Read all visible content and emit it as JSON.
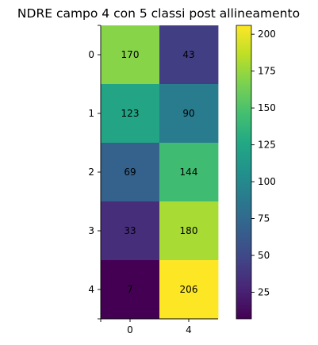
{
  "chart_data": {
    "type": "heatmap",
    "title": "NDRE campo 4 con 5 classi post allineamento",
    "xlabel": "",
    "ylabel": "",
    "x_tick_labels": [
      "0",
      "4"
    ],
    "y_tick_labels": [
      "0",
      "1",
      "2",
      "3",
      "4"
    ],
    "values": [
      [
        170,
        43
      ],
      [
        123,
        90
      ],
      [
        69,
        144
      ],
      [
        33,
        180
      ],
      [
        7,
        206
      ]
    ],
    "colormap": "viridis",
    "colorbar": {
      "range": [
        7,
        206
      ],
      "ticks": [
        25,
        50,
        75,
        100,
        125,
        150,
        175,
        200
      ]
    },
    "grid": false
  }
}
